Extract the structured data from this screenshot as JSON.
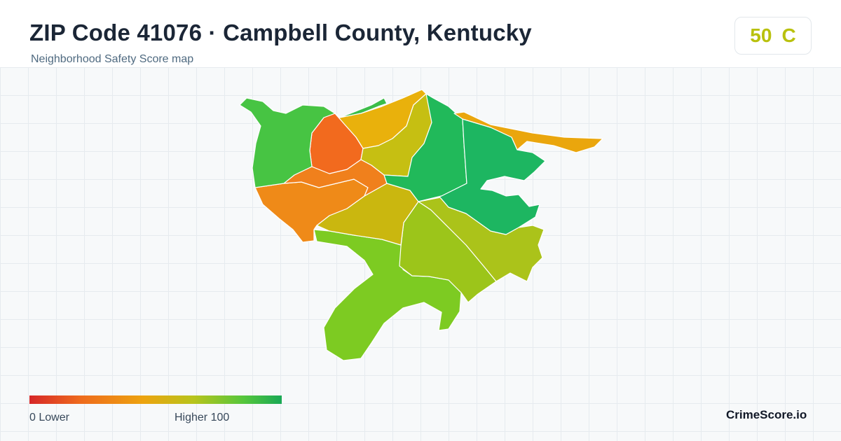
{
  "header": {
    "title": "ZIP Code 41076 · Campbell County, Kentucky",
    "subtitle": "Neighborhood Safety Score map"
  },
  "score_card": {
    "score": "50",
    "grade": "C",
    "color": "#b9c10e"
  },
  "map": {
    "zones": [
      {
        "id": "northwest",
        "color": "#47c443"
      },
      {
        "id": "north-tip",
        "color": "#3cbd4a"
      },
      {
        "id": "west-central-red",
        "color": "#f26a1e"
      },
      {
        "id": "north-orange",
        "color": "#e9b10c"
      },
      {
        "id": "central-olive",
        "color": "#c6bf12"
      },
      {
        "id": "central-orange",
        "color": "#f0801c"
      },
      {
        "id": "southwest-orange",
        "color": "#ef8a18"
      },
      {
        "id": "northeast-green",
        "color": "#21b95a"
      },
      {
        "id": "east-green",
        "color": "#1db661"
      },
      {
        "id": "east-riverfront",
        "color": "#eaa60d"
      },
      {
        "id": "south-central-olive",
        "color": "#cab70f"
      },
      {
        "id": "south-central-green",
        "color": "#9cc51a"
      },
      {
        "id": "southeast-olive",
        "color": "#abc31a"
      },
      {
        "id": "south-bend",
        "color": "#7dcb22"
      }
    ]
  },
  "legend": {
    "low_label": "0  Lower",
    "high_label": "Higher  100",
    "color_low": "#d62728",
    "color_high": "#1aa955"
  },
  "brand": "CrimeScore.io"
}
